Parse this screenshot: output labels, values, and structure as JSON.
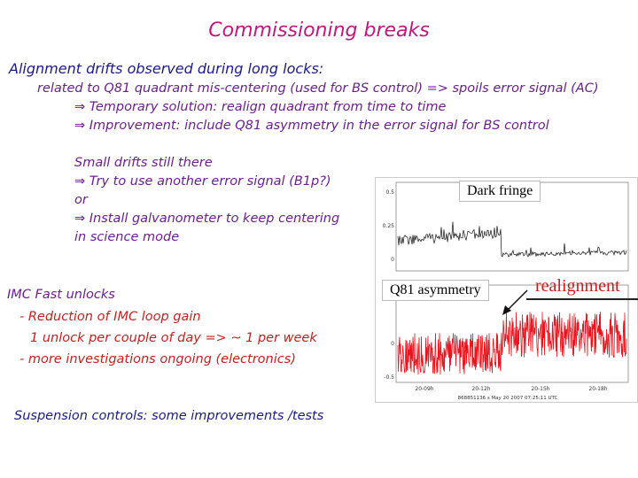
{
  "title": "Commissioning breaks",
  "alignment": {
    "heading": "Alignment drifts observed during long locks:",
    "line1": "related to Q81 quadrant mis-centering (used for BS control) => spoils error signal (AC)",
    "line2": "⇒ Temporary solution: realign quadrant from time to time",
    "line3": "⇒ Improvement: include Q81 asymmetry in the error signal for BS control"
  },
  "drifts": {
    "line1": "Small drifts still there",
    "line2": "⇒ Try to use another error signal (B1p?)",
    "line3": "or",
    "line4": "⇒ Install galvanometer to keep centering",
    "line5": "in science mode"
  },
  "imc": {
    "heading": "IMC Fast unlocks",
    "line1": "- Reduction of IMC loop gain",
    "line2": "1 unlock per couple of day => ~ 1 per week",
    "line3": "- more investigations ongoing (electronics)"
  },
  "suspension": "Suspension controls: some improvements /tests",
  "plot": {
    "dark_fringe_label": "Dark fringe",
    "q81_label": "Q81 asymmetry",
    "realignment_label": "realignment",
    "bottom_caption": "868851136 s  May 20 2007  07:25:11 UTC",
    "ticks_x": [
      "20-09h",
      "20-12h",
      "20-15h",
      "20-18h"
    ],
    "ticks_y_top": [
      "0.5",
      "0.25",
      "0"
    ],
    "ticks_y_bottom": [
      "0.5",
      "0",
      "-0.5"
    ],
    "colors": {
      "top_trace": "#111111",
      "bottom_trace": "#e8141e",
      "arrow": "#111111"
    }
  }
}
